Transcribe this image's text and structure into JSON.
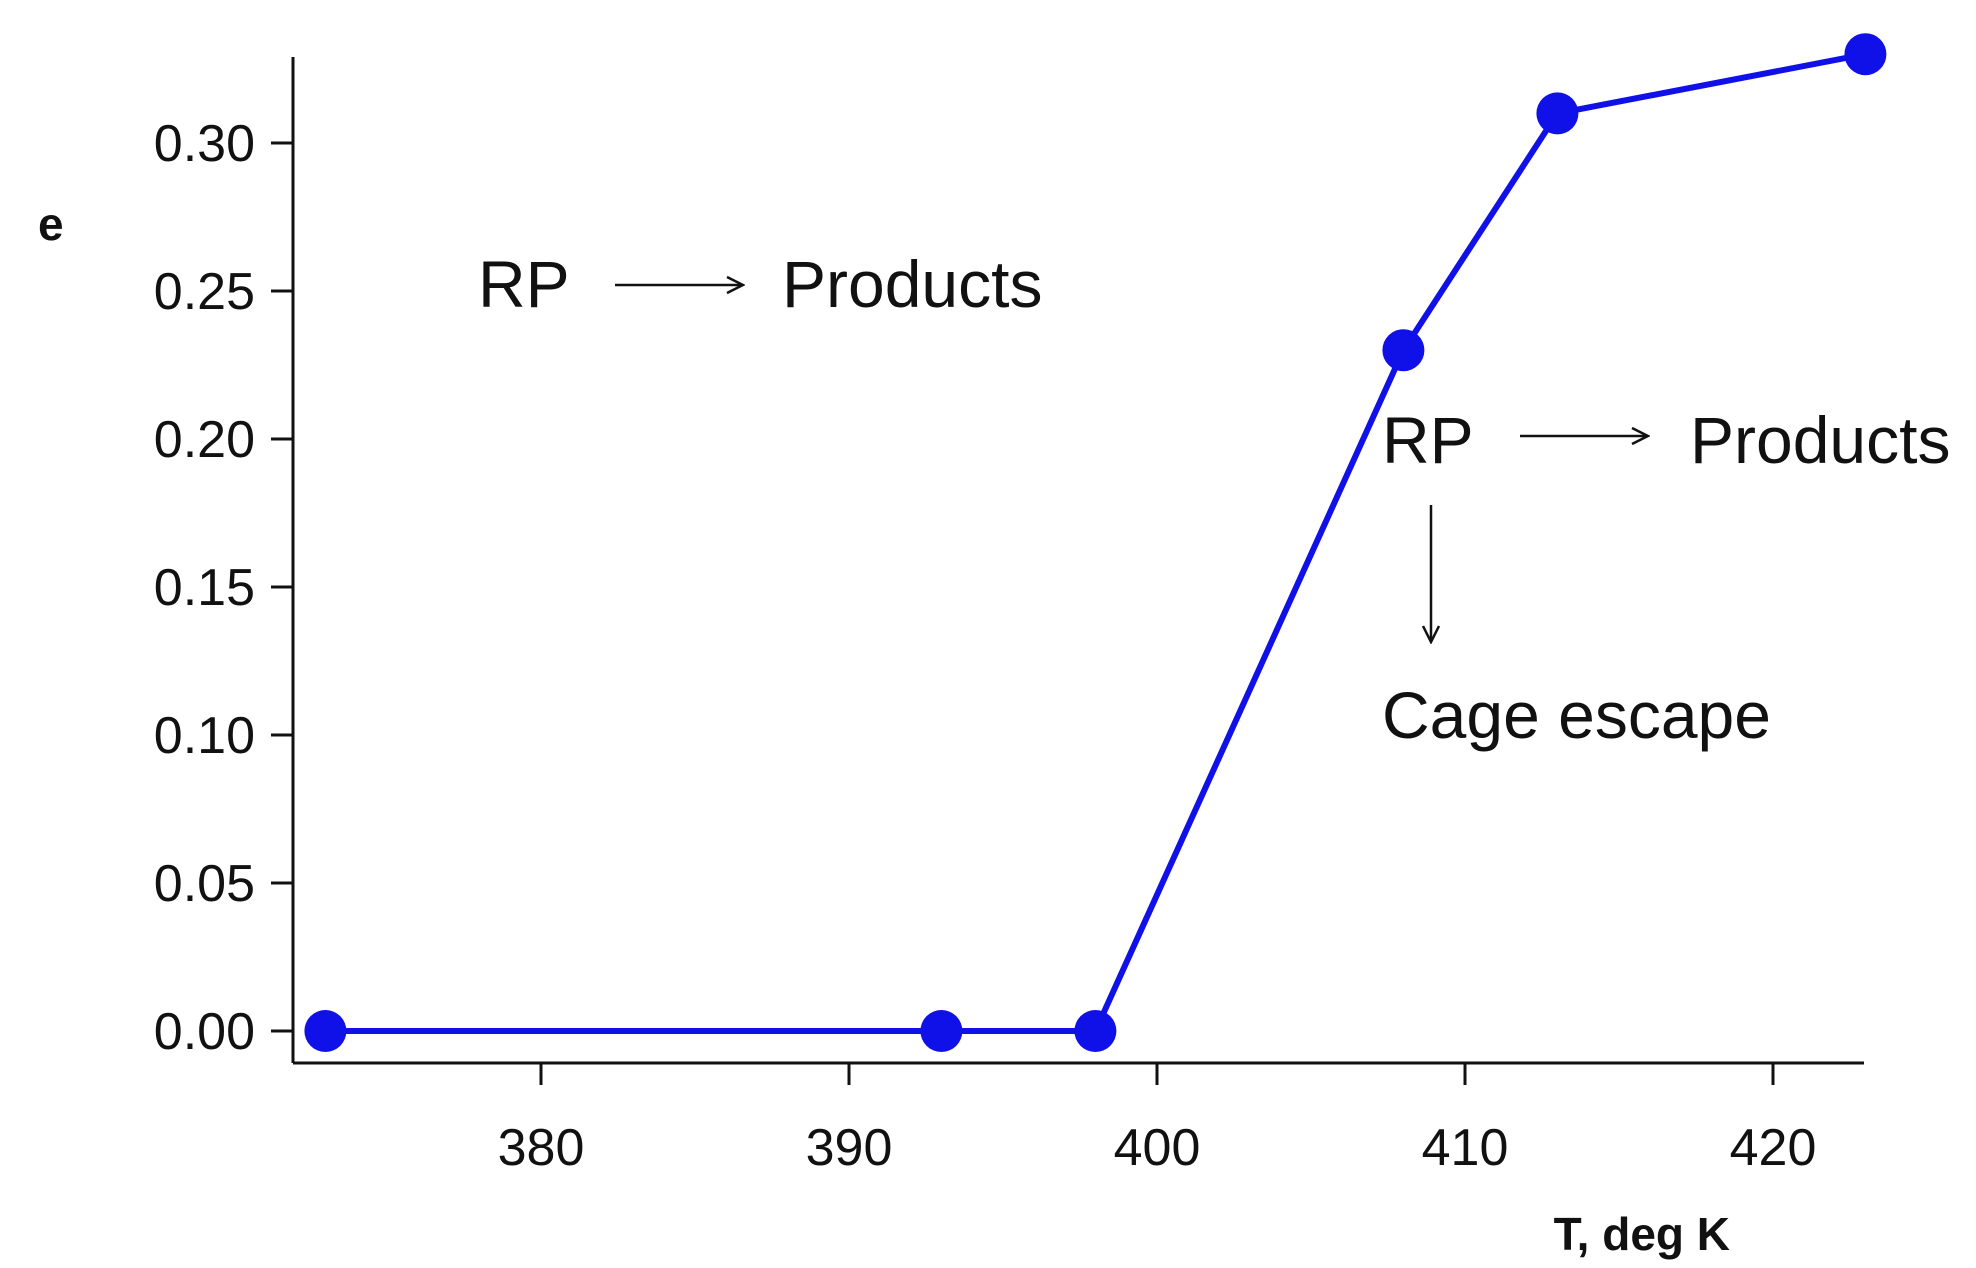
{
  "chart_data": {
    "type": "line",
    "title": "",
    "xlabel": "T, deg K",
    "ylabel": "e",
    "xlim": [
      372,
      423
    ],
    "ylim": [
      -0.01,
      0.33
    ],
    "grid": false,
    "x_ticks": [
      380,
      390,
      400,
      410,
      420
    ],
    "y_ticks": [
      0.0,
      0.05,
      0.1,
      0.15,
      0.2,
      0.25,
      0.3
    ],
    "y_tick_labels": [
      "0.00",
      "0.05",
      "0.10",
      "0.15",
      "0.20",
      "0.25",
      "0.30"
    ],
    "series": [
      {
        "color": "#1010e8",
        "x": [
          373,
          393,
          398,
          408,
          413,
          423
        ],
        "y": [
          0.0,
          0.0,
          0.0,
          0.23,
          0.31,
          0.33
        ]
      }
    ],
    "annotations": {
      "top": {
        "left": "RP",
        "right": "Products"
      },
      "bottom": {
        "left": "RP",
        "right": "Products",
        "down": "Cage escape"
      }
    }
  }
}
